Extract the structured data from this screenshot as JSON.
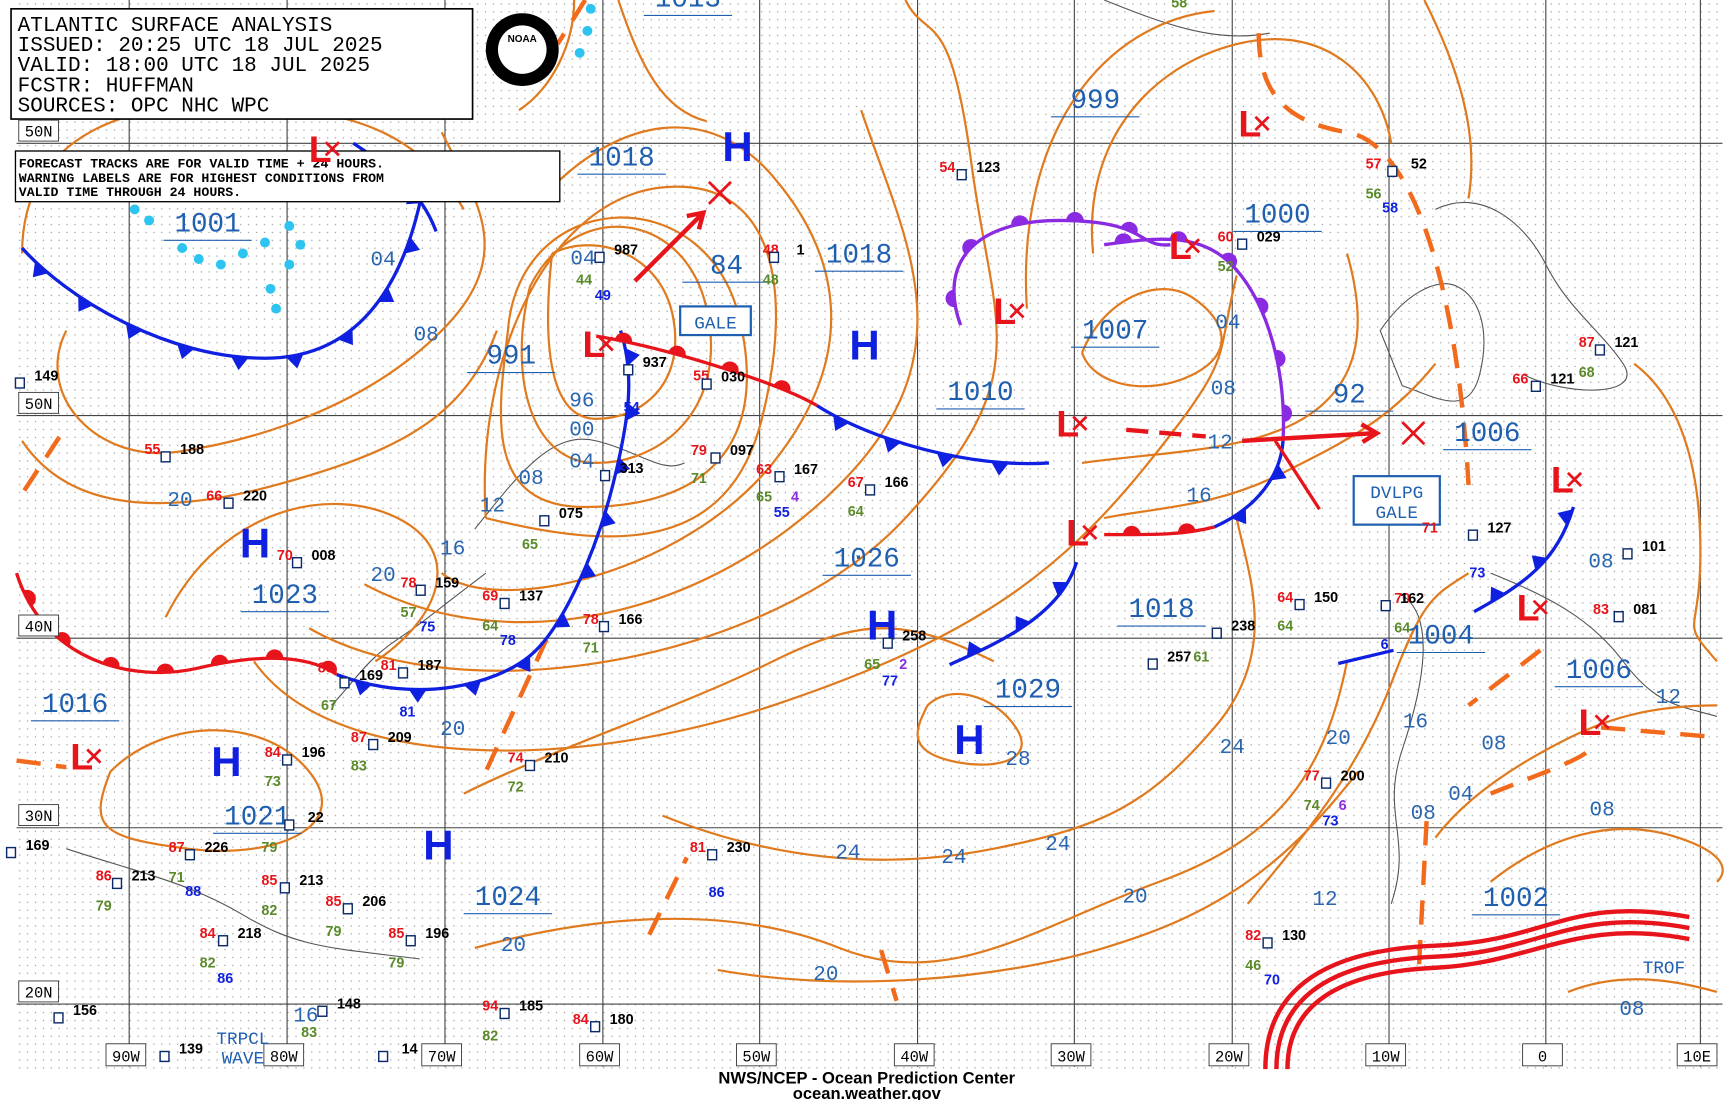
{
  "header": {
    "lines": [
      "ATLANTIC SURFACE ANALYSIS",
      "ISSUED: 20:25 UTC 18 JUL 2025",
      "VALID:  18:00 UTC 18 JUL 2025",
      "FCSTR:  HUFFMAN",
      "SOURCES: OPC NHC WPC"
    ]
  },
  "logo": "NOAA",
  "notice": {
    "lines": [
      "FORECAST TRACKS ARE FOR VALID TIME + 24 HOURS.",
      "WARNING LABELS ARE FOR HIGHEST CONDITIONS FROM",
      "VALID TIME THROUGH 24 HOURS."
    ]
  },
  "longitude_labels": [
    "90W",
    "80W",
    "70W",
    "60W",
    "50W",
    "40W",
    "30W",
    "20W",
    "10W",
    "0",
    "10E"
  ],
  "latitude_labels": [
    "50N",
    "50N",
    "40N",
    "30N",
    "20N"
  ],
  "pressure_labels": [
    "1013",
    "1018",
    "1001",
    "999",
    "84",
    "1018",
    "991",
    "1000",
    "1007",
    "1010",
    "92",
    "1006",
    "1026",
    "1023",
    "1018",
    "1029",
    "1004",
    "1006",
    "1016",
    "1021",
    "1024",
    "1002"
  ],
  "isobar_labels": [
    "04",
    "08",
    "96",
    "00",
    "04",
    "08",
    "12",
    "16",
    "20",
    "20",
    "04",
    "04",
    "08",
    "12",
    "16",
    "20",
    "24",
    "24",
    "24",
    "24",
    "20",
    "20",
    "20",
    "20",
    "16",
    "12",
    "08",
    "04",
    "08",
    "08",
    "08",
    "12",
    "08",
    "28",
    "16"
  ],
  "centers": [
    "H",
    "H",
    "H",
    "H",
    "H",
    "H",
    "H",
    "L",
    "L",
    "L",
    "L",
    "L",
    "L",
    "L",
    "L",
    "L",
    "L",
    "L"
  ],
  "warning_labels": [
    {
      "lines": [
        "GALE"
      ]
    },
    {
      "lines": [
        "DVLPG",
        "GALE"
      ]
    }
  ],
  "feature_labels": [
    {
      "lines": [
        "TROF"
      ]
    },
    {
      "lines": [
        "TRPCL",
        "WAVE"
      ]
    }
  ],
  "stations": {
    "temperatures": [
      "54",
      "48",
      "60",
      "57",
      "55",
      "79",
      "63",
      "67",
      "55",
      "66",
      "70",
      "78",
      "69",
      "81",
      "87",
      "84",
      "78",
      "74",
      "81",
      "87",
      "86",
      "85",
      "85",
      "84",
      "85",
      "94",
      "84",
      "77",
      "82",
      "70",
      "64",
      "71",
      "66",
      "87",
      "83",
      "88"
    ],
    "pressures": [
      "123",
      "1",
      "029",
      "52",
      "987",
      "937",
      "030",
      "097",
      "167",
      "166",
      "188",
      "220",
      "008",
      "159",
      "137",
      "187",
      "169",
      "209",
      "196",
      "166",
      "210",
      "230",
      "226",
      "213",
      "213",
      "206",
      "218",
      "196",
      "185",
      "180",
      "200",
      "130",
      "162",
      "150",
      "127",
      "121",
      "121",
      "081",
      "101",
      "238",
      "258",
      "257",
      "149",
      "169",
      "156",
      "139",
      "148",
      "22",
      "313",
      "075",
      "14"
    ],
    "dewpoints": [
      "44",
      "48",
      "52",
      "56",
      "65",
      "64",
      "65",
      "64",
      "57",
      "67",
      "83",
      "73",
      "71",
      "72",
      "79",
      "71",
      "79",
      "82",
      "79",
      "82",
      "79",
      "82",
      "74",
      "46",
      "64",
      "64",
      "68",
      "61",
      "65",
      "71",
      "83",
      "58"
    ],
    "winds": [
      "49",
      "54",
      "55",
      "78",
      "75",
      "81",
      "86",
      "88",
      "86",
      "73",
      "70",
      "73",
      "58",
      "77",
      "6"
    ],
    "other": [
      "4",
      "2",
      "6"
    ]
  },
  "footer": {
    "lines": [
      "NWS/NCEP - Ocean Prediction Center",
      "ocean.weather.gov"
    ]
  }
}
